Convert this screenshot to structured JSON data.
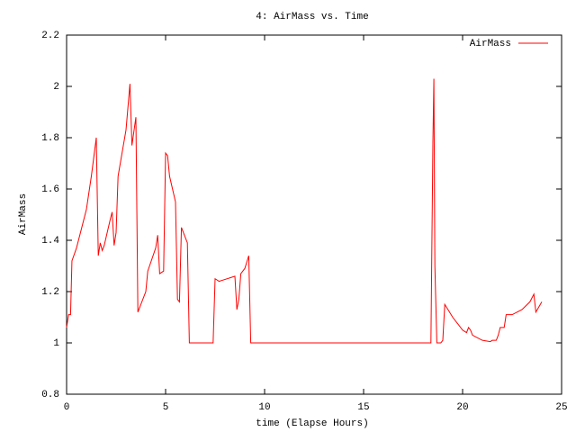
{
  "chart_data": {
    "type": "line",
    "title": "4: AirMass vs. Time",
    "x_label": "time (Elapse Hours)",
    "y_label": "AirMass",
    "x": [
      0,
      0.1,
      0.2,
      0.27,
      0.5,
      1.0,
      1.25,
      1.5,
      1.6,
      1.7,
      1.8,
      1.9,
      2.2,
      2.3,
      2.4,
      2.5,
      2.6,
      3.0,
      3.2,
      3.3,
      3.5,
      3.6,
      4.0,
      4.1,
      4.5,
      4.6,
      4.7,
      4.9,
      5.0,
      5.1,
      5.2,
      5.5,
      5.6,
      5.7,
      5.8,
      6.1,
      6.2,
      7.4,
      7.5,
      7.7,
      8.5,
      8.6,
      8.7,
      8.8,
      9.0,
      9.2,
      9.3,
      18.4,
      18.5,
      18.55,
      18.6,
      18.7,
      18.9,
      19.0,
      19.1,
      19.5,
      20.0,
      20.2,
      20.3,
      20.4,
      20.5,
      21.0,
      21.4,
      21.5,
      21.7,
      21.8,
      21.9,
      22.1,
      22.2,
      22.5,
      23.0,
      23.4,
      23.6,
      23.7,
      24.0
    ],
    "series": [
      {
        "name": "AirMass",
        "color": "#ff0000",
        "values": [
          1.06,
          1.11,
          1.11,
          1.32,
          1.37,
          1.52,
          1.65,
          1.8,
          1.34,
          1.39,
          1.36,
          1.38,
          1.48,
          1.51,
          1.38,
          1.43,
          1.65,
          1.83,
          2.01,
          1.77,
          1.88,
          1.12,
          1.2,
          1.28,
          1.37,
          1.42,
          1.27,
          1.28,
          1.74,
          1.73,
          1.65,
          1.55,
          1.17,
          1.16,
          1.45,
          1.39,
          1.0,
          1.0,
          1.25,
          1.24,
          1.26,
          1.13,
          1.17,
          1.27,
          1.29,
          1.34,
          1.0,
          1.0,
          1.78,
          2.03,
          1.3,
          1.0,
          1.0,
          1.01,
          1.15,
          1.1,
          1.05,
          1.04,
          1.06,
          1.05,
          1.03,
          1.01,
          1.005,
          1.01,
          1.01,
          1.03,
          1.06,
          1.06,
          1.11,
          1.11,
          1.13,
          1.16,
          1.19,
          1.12,
          1.16
        ]
      }
    ],
    "xlim": [
      0,
      25
    ],
    "xticks": [
      0,
      5,
      10,
      15,
      20,
      25
    ],
    "ylim": [
      0.8,
      2.2
    ],
    "yticks": [
      0.8,
      1,
      1.2,
      1.4,
      1.6,
      1.8,
      2,
      2.2
    ],
    "legend": "top-right"
  }
}
